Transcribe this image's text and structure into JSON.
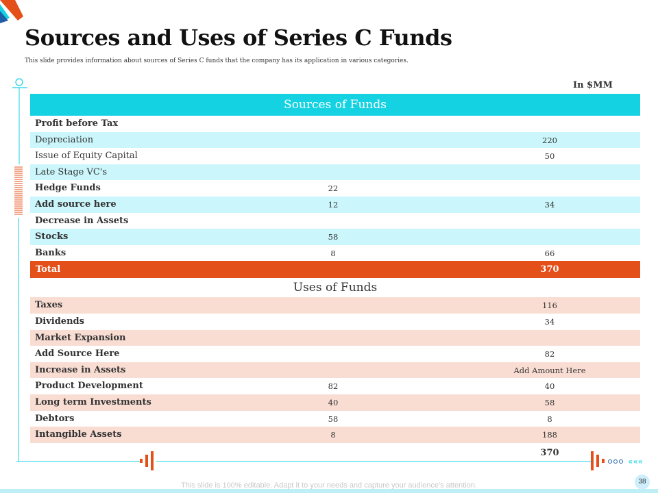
{
  "slide": {
    "title": "Sources and Uses of  Series C Funds",
    "subtitle": "This slide provides information about sources of Series C funds that the company has its application in various categories.",
    "unit": "In $MM",
    "footer": "This slide is 100% editable. Adapt it to your needs and capture your audience's attention.",
    "page_number": "38"
  },
  "sources": {
    "header": "Sources of  Funds",
    "rows": [
      {
        "label": "Profit before Tax",
        "c1": "",
        "c2": "",
        "bold": true
      },
      {
        "label": "Depreciation",
        "c1": "",
        "c2": "220",
        "bold": false
      },
      {
        "label": "Issue of Equity Capital",
        "c1": "",
        "c2": "50",
        "bold": false
      },
      {
        "label": "Late Stage VC's",
        "c1": "",
        "c2": "",
        "bold": false
      },
      {
        "label": "Hedge Funds",
        "c1": "22",
        "c2": "",
        "bold": true
      },
      {
        "label": "Add source here",
        "c1": "12",
        "c2": "34",
        "bold": true
      },
      {
        "label": "Decrease in Assets",
        "c1": "",
        "c2": "",
        "bold": true
      },
      {
        "label": "Stocks",
        "c1": "58",
        "c2": "",
        "bold": true
      },
      {
        "label": "Banks",
        "c1": "8",
        "c2": "66",
        "bold": true
      }
    ],
    "total_label": "Total",
    "total_value": "370"
  },
  "uses": {
    "header": "Uses of  Funds",
    "rows": [
      {
        "label": "Taxes",
        "c1": "",
        "c2": "116",
        "bold": true
      },
      {
        "label": "Dividends",
        "c1": "",
        "c2": "34",
        "bold": true
      },
      {
        "label": "Market Expansion",
        "c1": "",
        "c2": "",
        "bold": true
      },
      {
        "label": "Add Source Here",
        "c1": "",
        "c2": "82",
        "bold": true
      },
      {
        "label": "Increase in Assets",
        "c1": "",
        "c2": "Add Amount Here",
        "bold": true
      },
      {
        "label": "Product Development",
        "c1": "82",
        "c2": "40",
        "bold": true
      },
      {
        "label": "Long term Investments",
        "c1": "40",
        "c2": "58",
        "bold": true
      },
      {
        "label": "Debtors",
        "c1": "58",
        "c2": "8",
        "bold": true
      },
      {
        "label": "Intangible Assets",
        "c1": "8",
        "c2": "188",
        "bold": true
      }
    ],
    "total_value": "370"
  },
  "colors": {
    "accent_cyan": "#15d2e3",
    "row_cyan": "#cbf6fb",
    "accent_orange": "#e4501a",
    "row_peach": "#f9ddd3"
  }
}
